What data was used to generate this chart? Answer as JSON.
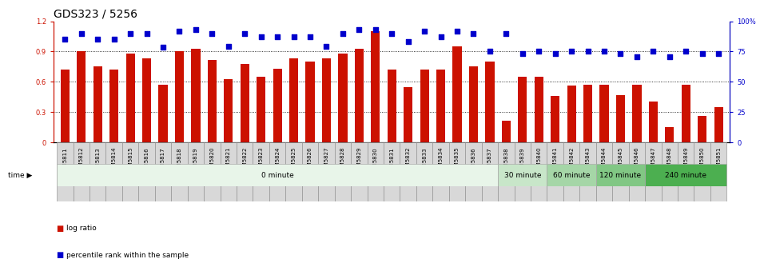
{
  "title": "GDS323 / 5256",
  "samples": [
    "GSM5811",
    "GSM5812",
    "GSM5813",
    "GSM5814",
    "GSM5815",
    "GSM5816",
    "GSM5817",
    "GSM5818",
    "GSM5819",
    "GSM5820",
    "GSM5821",
    "GSM5822",
    "GSM5823",
    "GSM5824",
    "GSM5825",
    "GSM5826",
    "GSM5827",
    "GSM5828",
    "GSM5829",
    "GSM5830",
    "GSM5831",
    "GSM5832",
    "GSM5833",
    "GSM5834",
    "GSM5835",
    "GSM5836",
    "GSM5837",
    "GSM5838",
    "GSM5839",
    "GSM5840",
    "GSM5841",
    "GSM5842",
    "GSM5843",
    "GSM5844",
    "GSM5845",
    "GSM5846",
    "GSM5847",
    "GSM5848",
    "GSM5849",
    "GSM5850",
    "GSM5851"
  ],
  "log_ratio": [
    0.72,
    0.9,
    0.75,
    0.72,
    0.88,
    0.83,
    0.57,
    0.9,
    0.93,
    0.82,
    0.63,
    0.78,
    0.65,
    0.73,
    0.83,
    0.8,
    0.83,
    0.88,
    0.93,
    1.1,
    0.72,
    0.55,
    0.72,
    0.72,
    0.95,
    0.75,
    0.8,
    0.21,
    0.65,
    0.65,
    0.46,
    0.56,
    0.57,
    0.57,
    0.47,
    0.57,
    0.4,
    0.15,
    0.57,
    0.26,
    0.35
  ],
  "percentile": [
    1.02,
    1.08,
    1.02,
    1.02,
    1.08,
    1.08,
    0.94,
    1.1,
    1.12,
    1.08,
    0.95,
    1.08,
    1.05,
    1.05,
    1.05,
    1.05,
    0.95,
    1.08,
    1.12,
    1.12,
    1.08,
    1.0,
    1.1,
    1.05,
    1.1,
    1.08,
    0.9,
    1.08,
    0.88,
    0.9,
    0.88,
    0.9,
    0.9,
    0.9,
    0.88,
    0.85,
    0.9,
    0.85,
    0.9,
    0.88,
    0.88
  ],
  "time_groups": [
    {
      "label": "0 minute",
      "start": 0,
      "end": 27,
      "color": "#e8f5e9"
    },
    {
      "label": "30 minute",
      "start": 27,
      "end": 30,
      "color": "#c8e6c9"
    },
    {
      "label": "60 minute",
      "start": 30,
      "end": 33,
      "color": "#a5d6a7"
    },
    {
      "label": "120 minute",
      "start": 33,
      "end": 36,
      "color": "#81c784"
    },
    {
      "label": "240 minute",
      "start": 36,
      "end": 41,
      "color": "#4caf50"
    }
  ],
  "bar_color": "#cc1100",
  "dot_color": "#0000cc",
  "ylim_left": [
    0,
    1.2
  ],
  "ylim_right": [
    0,
    100
  ],
  "yticks_left": [
    0,
    0.3,
    0.6,
    0.9,
    1.2
  ],
  "ytick_labels_left": [
    "0",
    "0.3",
    "0.6",
    "0.9",
    "1.2"
  ],
  "yticks_right": [
    0,
    25,
    50,
    75,
    100
  ],
  "ytick_labels_right": [
    "0",
    "25",
    "50",
    "75",
    "100%"
  ],
  "grid_lines": [
    0.3,
    0.6,
    0.9
  ],
  "title_fontsize": 10,
  "bar_tick_fontsize": 6,
  "legend_log_ratio": "log ratio",
  "legend_percentile": "percentile rank within the sample",
  "xtick_box_color": "#d8d8d8",
  "xtick_box_edge": "#888888"
}
